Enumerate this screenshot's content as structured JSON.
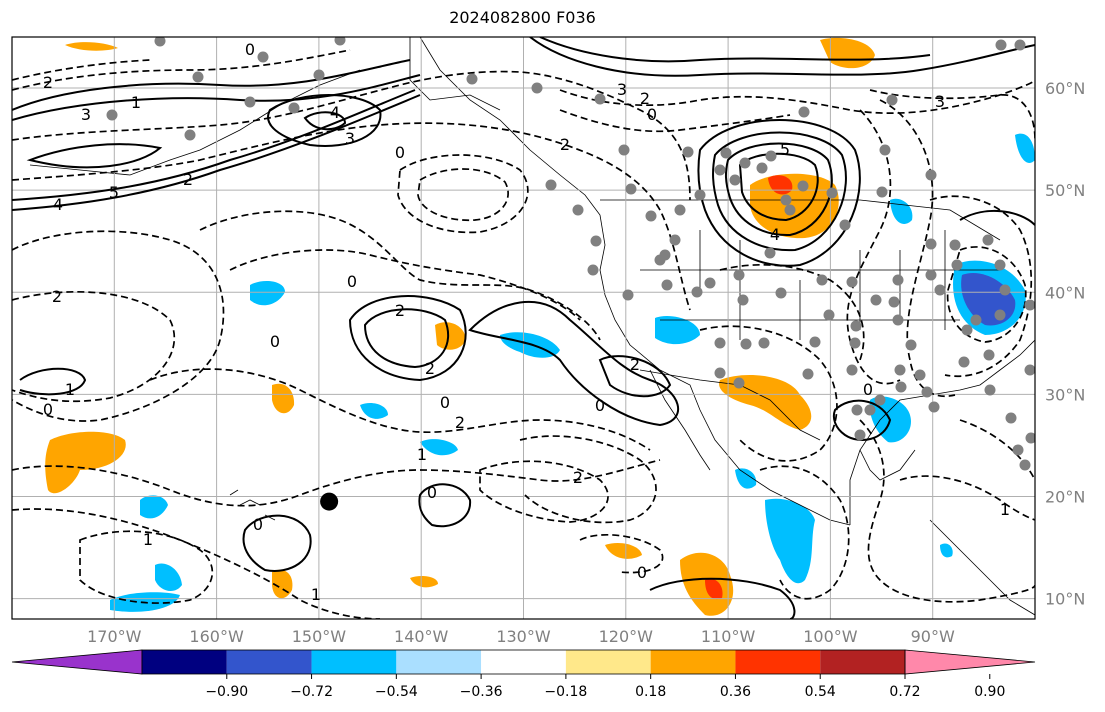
{
  "title": "2024082800 F036",
  "map": {
    "projection": "lat-lon",
    "lon_range": [
      -180,
      -80
    ],
    "lat_range": [
      8,
      65
    ],
    "lat_ticks": [
      {
        "value": 60,
        "label": "60°N"
      },
      {
        "value": 50,
        "label": "50°N"
      },
      {
        "value": 40,
        "label": "40°N"
      },
      {
        "value": 30,
        "label": "30°N"
      },
      {
        "value": 20,
        "label": "20°N"
      },
      {
        "value": 10,
        "label": "10°N"
      }
    ],
    "lon_ticks": [
      {
        "value": -170,
        "label": "170°W"
      },
      {
        "value": -160,
        "label": "160°W"
      },
      {
        "value": -150,
        "label": "150°W"
      },
      {
        "value": -140,
        "label": "140°W"
      },
      {
        "value": -130,
        "label": "130°W"
      },
      {
        "value": -120,
        "label": "120°W"
      },
      {
        "value": -110,
        "label": "110°W"
      },
      {
        "value": -100,
        "label": "100°W"
      },
      {
        "value": -90,
        "label": "90°W"
      }
    ],
    "grid": true,
    "marker": {
      "name": "black-dot",
      "lon": -149,
      "lat": 19.5
    }
  },
  "colorbar": {
    "extend": "both",
    "colors": [
      "#9933cc",
      "#000080",
      "#3355cc",
      "#00bfff",
      "#aadfff",
      "#ffffff",
      "#ffe88a",
      "#ffa500",
      "#ff3300",
      "#b22222",
      "#ff88aa"
    ],
    "tick_labels": [
      "−0.90",
      "−0.72",
      "−0.54",
      "−0.36",
      "−0.18",
      "0.18",
      "0.36",
      "0.54",
      "0.72",
      "0.90"
    ]
  },
  "contour_labels": [
    "2",
    "3",
    "4",
    "5",
    "0",
    "1",
    "2",
    "0",
    "0",
    "2",
    "2",
    "0",
    "0",
    "2",
    "1",
    "0",
    "1",
    "0",
    "2",
    "1",
    "3",
    "2",
    "3",
    "5",
    "4",
    "3",
    "2",
    "0",
    "4",
    "1",
    "2",
    "0",
    "1",
    "0",
    "0",
    "0",
    "2"
  ],
  "colors": {
    "grid": "#b0b0b0",
    "contour": "#000000",
    "station": "#808080"
  }
}
